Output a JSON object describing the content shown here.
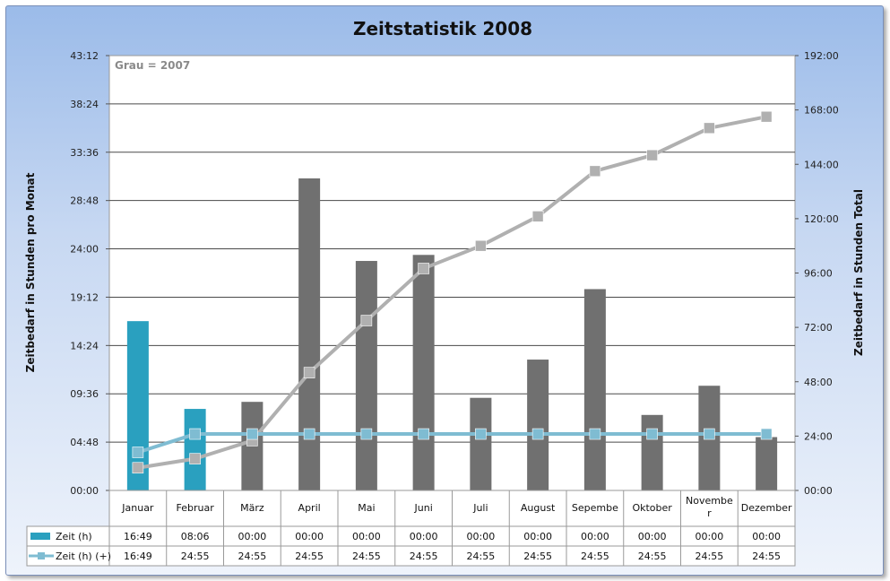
{
  "chart_data": {
    "type": "bar",
    "title": "Zeitstatistik 2008",
    "note": "Grau = 2007",
    "ylabel_left": "Zeitbedarf in Stunden pro Monat",
    "ylabel_right": "Zeitbedarf in Stunden Total",
    "y_left_ticks": [
      "00:00",
      "04:48",
      "09:36",
      "14:24",
      "19:12",
      "24:00",
      "28:48",
      "33:36",
      "38:24",
      "43:12"
    ],
    "y_left_max_hours": 43.2,
    "y_right_ticks": [
      "00:00",
      "24:00",
      "48:00",
      "72:00",
      "96:00",
      "120:00",
      "144:00",
      "168:00",
      "192:00"
    ],
    "y_right_max_hours": 192,
    "categories": [
      "Januar",
      "Februar",
      "März",
      "April",
      "Mai",
      "Juni",
      "Juli",
      "August",
      "Sepembe",
      "Oktober",
      "Novembe\nr",
      "Dezember"
    ],
    "series": [
      {
        "name": "Zeit (h)",
        "kind": "bar",
        "axis": "left",
        "color": "#2aa0bf",
        "values": [
          16.82,
          8.1,
          0,
          0,
          0,
          0,
          0,
          0,
          0,
          0,
          0,
          0
        ],
        "labels": [
          "16:49",
          "08:06",
          "00:00",
          "00:00",
          "00:00",
          "00:00",
          "00:00",
          "00:00",
          "00:00",
          "00:00",
          "00:00",
          "00:00"
        ]
      },
      {
        "name": "Zeit (h) (+)",
        "kind": "line",
        "axis": "right",
        "color": "#7fbcd2",
        "values": [
          16.82,
          24.92,
          24.92,
          24.92,
          24.92,
          24.92,
          24.92,
          24.92,
          24.92,
          24.92,
          24.92,
          24.92
        ],
        "labels": [
          "16:49",
          "24:55",
          "24:55",
          "24:55",
          "24:55",
          "24:55",
          "24:55",
          "24:55",
          "24:55",
          "24:55",
          "24:55",
          "24:55"
        ]
      },
      {
        "kind": "bar",
        "axis": "left",
        "color": "#707070",
        "values": [
          0,
          0,
          8.8,
          31,
          22.8,
          23.4,
          9.2,
          13,
          20,
          7.5,
          10.4,
          5.3
        ]
      },
      {
        "kind": "line",
        "axis": "right",
        "color": "#b0b0b0",
        "values": [
          10,
          14,
          22,
          52,
          75,
          98,
          108,
          121,
          141,
          148,
          160,
          165
        ]
      }
    ]
  }
}
